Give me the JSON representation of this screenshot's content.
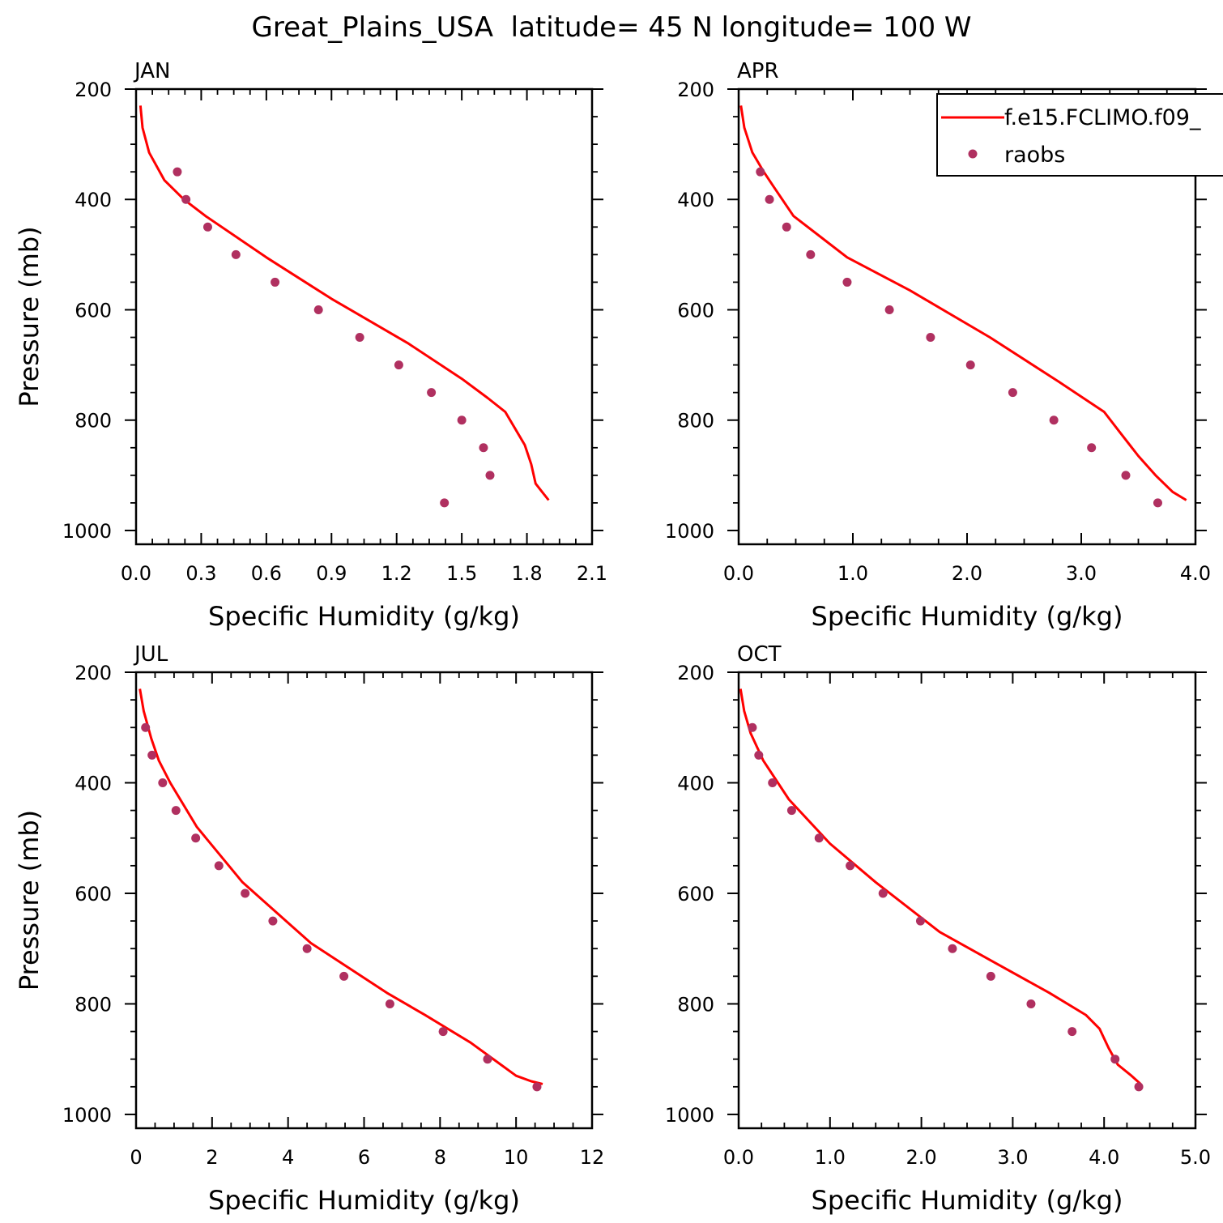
{
  "chart_data": {
    "title": "Great_Plains_USA  latitude= 45 N longitude= 100 W",
    "legend": {
      "position": "top-right",
      "entries": [
        {
          "label": "f.e15.FCLIMO.f09_",
          "style": "line",
          "color": "#ff0000"
        },
        {
          "label": "raobs",
          "style": "marker",
          "color": "#b03060"
        }
      ]
    },
    "panels": [
      {
        "type": "line",
        "label": "JAN",
        "xlabel": "Specific Humidity (g/kg)",
        "ylabel": "Pressure (mb)",
        "xlim": [
          0,
          2.1
        ],
        "ylim": [
          1025,
          200
        ],
        "xticks": [
          0,
          0.3,
          0.6,
          0.9,
          1.2,
          1.5,
          1.8,
          2.1
        ],
        "xtick_labels": [
          "0.0",
          "0.3",
          "0.6",
          "0.9",
          "1.2",
          "1.5",
          "1.8",
          "2.1"
        ],
        "yticks": [
          200,
          400,
          600,
          800,
          1000
        ],
        "ytick_labels": [
          "200",
          "400",
          "600",
          "800",
          "1000"
        ],
        "model": {
          "x": [
            0.02,
            0.03,
            0.06,
            0.13,
            0.22,
            0.32,
            0.6,
            0.9,
            1.25,
            1.5,
            1.62,
            1.7,
            1.79,
            1.82,
            1.84,
            1.87,
            1.9
          ],
          "y": [
            230,
            270,
            315,
            365,
            400,
            430,
            505,
            580,
            660,
            725,
            760,
            785,
            845,
            880,
            915,
            930,
            945
          ]
        },
        "raobs": {
          "x": [
            0.19,
            0.23,
            0.33,
            0.46,
            0.64,
            0.84,
            1.03,
            1.21,
            1.36,
            1.5,
            1.6,
            1.63,
            1.42
          ],
          "y": [
            350,
            400,
            450,
            500,
            550,
            600,
            650,
            700,
            750,
            800,
            850,
            900,
            950
          ]
        }
      },
      {
        "type": "line",
        "label": "APR",
        "xlabel": "Specific Humidity (g/kg)",
        "ylabel": "",
        "xlim": [
          0,
          4.0
        ],
        "ylim": [
          1025,
          200
        ],
        "xticks": [
          0,
          1,
          2,
          3,
          4
        ],
        "xtick_labels": [
          "0.0",
          "1.0",
          "2.0",
          "3.0",
          "4.0"
        ],
        "yticks": [
          200,
          400,
          600,
          800,
          1000
        ],
        "ytick_labels": [
          "200",
          "400",
          "600",
          "800",
          "1000"
        ],
        "model": {
          "x": [
            0.02,
            0.05,
            0.12,
            0.22,
            0.3,
            0.48,
            0.95,
            1.5,
            2.2,
            2.8,
            3.2,
            3.35,
            3.5,
            3.65,
            3.8,
            3.92
          ],
          "y": [
            230,
            270,
            315,
            350,
            375,
            430,
            505,
            565,
            650,
            730,
            785,
            825,
            865,
            900,
            930,
            945
          ]
        },
        "raobs": {
          "x": [
            0.19,
            0.27,
            0.42,
            0.63,
            0.95,
            1.32,
            1.68,
            2.03,
            2.4,
            2.76,
            3.09,
            3.39,
            3.67
          ],
          "y": [
            350,
            400,
            450,
            500,
            550,
            600,
            650,
            700,
            750,
            800,
            850,
            900,
            950
          ]
        }
      },
      {
        "type": "line",
        "label": "JUL",
        "xlabel": "Specific Humidity (g/kg)",
        "ylabel": "Pressure (mb)",
        "xlim": [
          0,
          12
        ],
        "ylim": [
          1025,
          200
        ],
        "xticks": [
          0,
          2,
          4,
          6,
          8,
          10,
          12
        ],
        "xtick_labels": [
          "0",
          "2",
          "4",
          "6",
          "8",
          "10",
          "12"
        ],
        "yticks": [
          200,
          400,
          600,
          800,
          1000
        ],
        "ytick_labels": [
          "200",
          "400",
          "600",
          "800",
          "1000"
        ],
        "model": {
          "x": [
            0.1,
            0.2,
            0.4,
            0.6,
            0.9,
            1.6,
            2.8,
            4.6,
            6.6,
            7.6,
            8.8,
            9.6,
            10.0,
            10.4,
            10.7
          ],
          "y": [
            230,
            270,
            320,
            360,
            400,
            480,
            580,
            690,
            780,
            820,
            870,
            910,
            930,
            940,
            945
          ]
        },
        "raobs": {
          "x": [
            0.25,
            0.42,
            0.7,
            1.05,
            1.57,
            2.18,
            2.87,
            3.6,
            4.5,
            5.47,
            6.68,
            8.08,
            9.25,
            10.55
          ],
          "y": [
            300,
            350,
            400,
            450,
            500,
            550,
            600,
            650,
            700,
            750,
            800,
            850,
            900,
            950
          ]
        }
      },
      {
        "type": "line",
        "label": "OCT",
        "xlabel": "Specific Humidity (g/kg)",
        "ylabel": "",
        "xlim": [
          0,
          5.0
        ],
        "ylim": [
          1025,
          200
        ],
        "xticks": [
          0,
          1,
          2,
          3,
          4,
          5
        ],
        "xtick_labels": [
          "0.0",
          "1.0",
          "2.0",
          "3.0",
          "4.0",
          "5.0"
        ],
        "yticks": [
          200,
          400,
          600,
          800,
          1000
        ],
        "ytick_labels": [
          "200",
          "400",
          "600",
          "800",
          "1000"
        ],
        "model": {
          "x": [
            0.02,
            0.06,
            0.13,
            0.27,
            0.55,
            1.0,
            1.5,
            2.2,
            2.8,
            3.4,
            3.8,
            3.95,
            4.05,
            4.15,
            4.3,
            4.4
          ],
          "y": [
            230,
            270,
            310,
            360,
            430,
            510,
            580,
            670,
            725,
            780,
            820,
            845,
            880,
            910,
            930,
            945
          ]
        },
        "raobs": {
          "x": [
            0.15,
            0.22,
            0.37,
            0.58,
            0.88,
            1.22,
            1.58,
            1.99,
            2.34,
            2.76,
            3.2,
            3.65,
            4.12,
            4.38
          ],
          "y": [
            300,
            350,
            400,
            450,
            500,
            550,
            600,
            650,
            700,
            750,
            800,
            850,
            900,
            950
          ]
        }
      }
    ]
  }
}
